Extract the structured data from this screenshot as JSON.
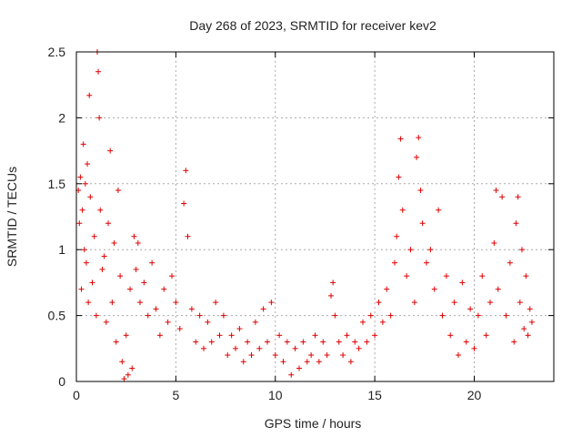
{
  "chart_data": {
    "type": "scatter",
    "title": "Day 268 of 2023, SRMTID for receiver kev2",
    "xlabel": "GPS time / hours",
    "ylabel": "SRMTID / TECUs",
    "xlim": [
      0,
      24
    ],
    "ylim": [
      0,
      2.5
    ],
    "xticks": [
      0,
      5,
      10,
      15,
      20
    ],
    "xtick_labels": [
      "0",
      "5",
      "10",
      "15",
      "20"
    ],
    "yticks": [
      0,
      0.5,
      1,
      1.5,
      2,
      2.5
    ],
    "ytick_labels": [
      "0",
      "0.5",
      "1",
      "1.5",
      "2",
      "2.5"
    ],
    "grid": true,
    "marker": "+",
    "marker_color": "#e00000",
    "series": [
      {
        "name": "SRMTID",
        "points": [
          [
            0.1,
            1.45
          ],
          [
            0.15,
            1.2
          ],
          [
            0.2,
            1.55
          ],
          [
            0.25,
            0.7
          ],
          [
            0.3,
            1.3
          ],
          [
            0.35,
            1.8
          ],
          [
            0.4,
            1.0
          ],
          [
            0.45,
            1.5
          ],
          [
            0.5,
            0.9
          ],
          [
            0.55,
            1.65
          ],
          [
            0.6,
            0.6
          ],
          [
            0.7,
            1.4
          ],
          [
            0.8,
            0.75
          ],
          [
            0.9,
            1.1
          ],
          [
            1.0,
            0.5
          ],
          [
            1.05,
            2.5
          ],
          [
            1.1,
            2.35
          ],
          [
            1.15,
            2.0
          ],
          [
            1.2,
            1.3
          ],
          [
            1.3,
            0.85
          ],
          [
            0.65,
            2.17
          ],
          [
            1.4,
            0.95
          ],
          [
            1.5,
            0.45
          ],
          [
            1.6,
            1.2
          ],
          [
            1.7,
            1.75
          ],
          [
            1.8,
            0.6
          ],
          [
            1.9,
            1.05
          ],
          [
            2.0,
            0.3
          ],
          [
            2.1,
            1.45
          ],
          [
            2.2,
            0.8
          ],
          [
            2.3,
            0.15
          ],
          [
            2.4,
            0.02
          ],
          [
            2.5,
            0.35
          ],
          [
            2.6,
            0.05
          ],
          [
            2.7,
            0.7
          ],
          [
            2.8,
            0.1
          ],
          [
            2.9,
            1.1
          ],
          [
            3.0,
            0.85
          ],
          [
            3.1,
            1.05
          ],
          [
            3.2,
            0.6
          ],
          [
            3.4,
            0.75
          ],
          [
            3.6,
            0.5
          ],
          [
            3.8,
            0.9
          ],
          [
            4.0,
            0.55
          ],
          [
            4.2,
            0.35
          ],
          [
            4.4,
            0.7
          ],
          [
            4.6,
            0.45
          ],
          [
            4.8,
            0.8
          ],
          [
            5.0,
            0.6
          ],
          [
            5.2,
            0.4
          ],
          [
            5.4,
            1.35
          ],
          [
            5.5,
            1.6
          ],
          [
            5.6,
            1.1
          ],
          [
            5.8,
            0.55
          ],
          [
            6.0,
            0.3
          ],
          [
            6.2,
            0.5
          ],
          [
            6.4,
            0.25
          ],
          [
            6.6,
            0.45
          ],
          [
            6.8,
            0.3
          ],
          [
            7.0,
            0.6
          ],
          [
            7.2,
            0.35
          ],
          [
            7.4,
            0.5
          ],
          [
            7.6,
            0.2
          ],
          [
            7.8,
            0.35
          ],
          [
            8.0,
            0.25
          ],
          [
            8.2,
            0.4
          ],
          [
            8.4,
            0.15
          ],
          [
            8.6,
            0.3
          ],
          [
            8.8,
            0.2
          ],
          [
            9.0,
            0.45
          ],
          [
            9.2,
            0.25
          ],
          [
            9.4,
            0.55
          ],
          [
            9.6,
            0.3
          ],
          [
            9.8,
            0.6
          ],
          [
            10.0,
            0.2
          ],
          [
            10.2,
            0.35
          ],
          [
            10.4,
            0.15
          ],
          [
            10.6,
            0.3
          ],
          [
            10.8,
            0.05
          ],
          [
            11.0,
            0.25
          ],
          [
            11.2,
            0.1
          ],
          [
            11.4,
            0.3
          ],
          [
            11.6,
            0.15
          ],
          [
            11.8,
            0.2
          ],
          [
            12.0,
            0.35
          ],
          [
            12.2,
            0.15
          ],
          [
            12.4,
            0.3
          ],
          [
            12.6,
            0.2
          ],
          [
            12.8,
            0.65
          ],
          [
            12.9,
            0.75
          ],
          [
            13.0,
            0.5
          ],
          [
            13.2,
            0.3
          ],
          [
            13.4,
            0.2
          ],
          [
            13.6,
            0.35
          ],
          [
            13.8,
            0.15
          ],
          [
            14.0,
            0.3
          ],
          [
            14.2,
            0.25
          ],
          [
            14.4,
            0.45
          ],
          [
            14.6,
            0.3
          ],
          [
            14.8,
            0.5
          ],
          [
            15.0,
            0.35
          ],
          [
            15.2,
            0.6
          ],
          [
            15.4,
            0.45
          ],
          [
            15.6,
            0.7
          ],
          [
            15.8,
            0.5
          ],
          [
            16.0,
            0.9
          ],
          [
            16.1,
            1.1
          ],
          [
            16.2,
            1.55
          ],
          [
            16.3,
            1.84
          ],
          [
            16.4,
            1.3
          ],
          [
            16.6,
            0.8
          ],
          [
            16.8,
            1.0
          ],
          [
            17.0,
            0.6
          ],
          [
            17.1,
            1.7
          ],
          [
            17.2,
            1.85
          ],
          [
            17.3,
            1.45
          ],
          [
            17.4,
            1.2
          ],
          [
            17.6,
            0.9
          ],
          [
            17.8,
            1.0
          ],
          [
            18.0,
            0.7
          ],
          [
            18.2,
            1.3
          ],
          [
            18.4,
            0.5
          ],
          [
            18.6,
            0.8
          ],
          [
            18.8,
            0.35
          ],
          [
            19.0,
            0.6
          ],
          [
            19.2,
            0.2
          ],
          [
            19.4,
            0.75
          ],
          [
            19.6,
            0.3
          ],
          [
            19.8,
            0.55
          ],
          [
            20.0,
            0.25
          ],
          [
            20.2,
            0.5
          ],
          [
            20.4,
            0.8
          ],
          [
            20.6,
            0.35
          ],
          [
            20.8,
            0.6
          ],
          [
            21.0,
            1.05
          ],
          [
            21.1,
            1.45
          ],
          [
            21.2,
            0.7
          ],
          [
            21.4,
            1.4
          ],
          [
            21.6,
            0.5
          ],
          [
            21.8,
            0.9
          ],
          [
            22.0,
            0.3
          ],
          [
            22.1,
            1.2
          ],
          [
            22.2,
            1.4
          ],
          [
            22.3,
            0.6
          ],
          [
            22.4,
            1.0
          ],
          [
            22.5,
            0.4
          ],
          [
            22.6,
            0.8
          ],
          [
            22.7,
            0.35
          ],
          [
            22.8,
            0.55
          ],
          [
            22.9,
            0.45
          ]
        ]
      }
    ]
  }
}
